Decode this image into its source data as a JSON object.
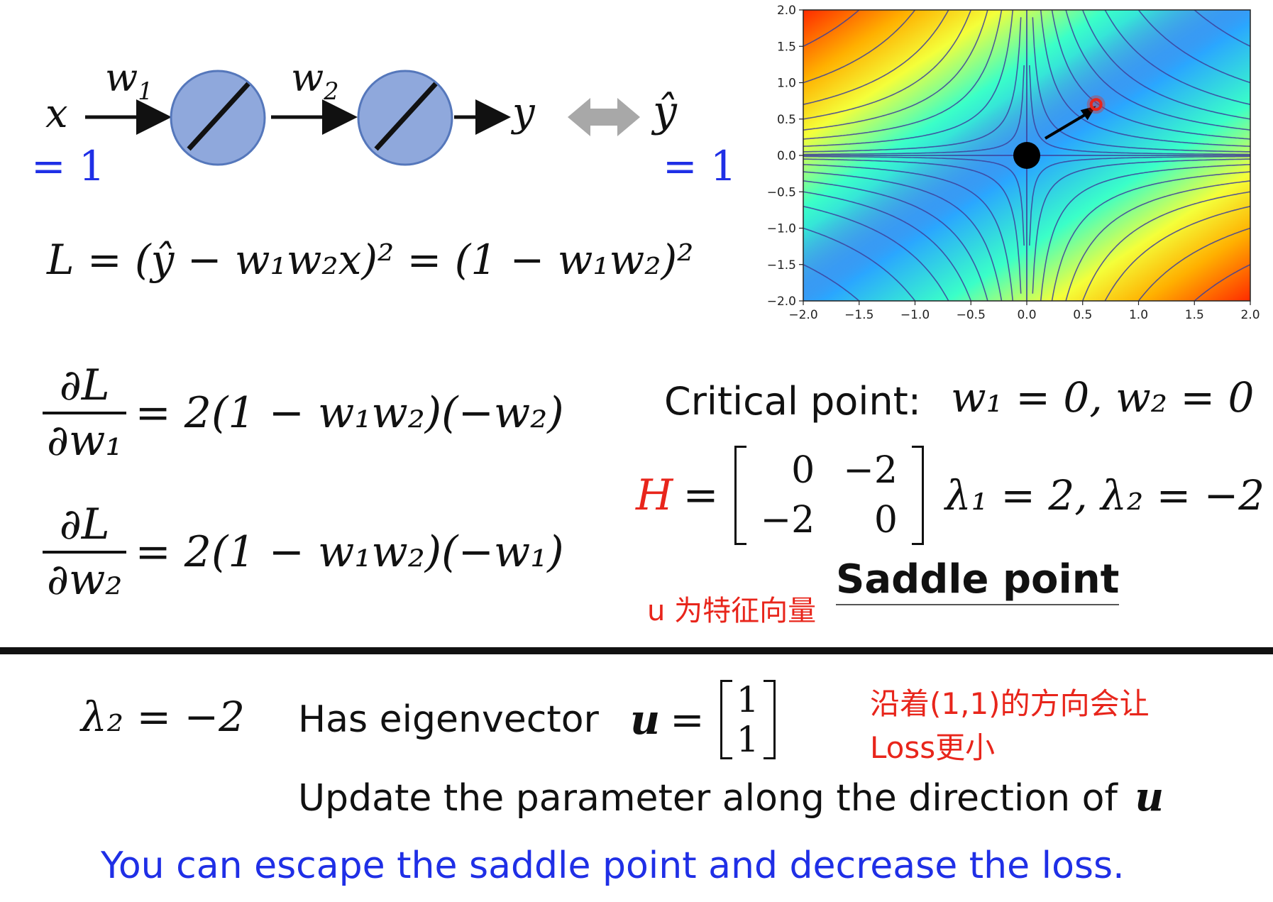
{
  "diagram": {
    "x_label": "x",
    "x_value": "= 1",
    "w1_label": "w",
    "w1_sub": "1",
    "w2_label": "w",
    "w2_sub": "2",
    "y_label": "y",
    "yhat_label": "ŷ",
    "yhat_value": "= 1",
    "colors": {
      "neuron_fill": "#8fa8dc",
      "neuron_stroke": "#5577bb",
      "double_arrow": "#a8a8a8"
    }
  },
  "loss_equation": "L = (ŷ − w₁w₂x)² = (1 − w₁w₂)²",
  "partials": {
    "dl_num": "∂L",
    "dw1_den": "∂w₁",
    "dw1_rhs": "= 2(1 − w₁w₂)(−w₂)",
    "dw2_den": "∂w₂",
    "dw2_rhs": "= 2(1 − w₁w₂)(−w₁)"
  },
  "critical": {
    "label": "Critical point:",
    "value": "w₁ = 0, w₂ = 0"
  },
  "hessian": {
    "symbol": "H",
    "eq": "=",
    "m11": "0",
    "m12": "−2",
    "m21": "−2",
    "m22": "0",
    "eigenvalues": "λ₁ = 2, λ₂ = −2"
  },
  "annotation_u": "u 为特征向量",
  "saddle_label": "Saddle point",
  "bottom": {
    "lambda2": "λ₂ = −2",
    "has_eigenvector": "Has eigenvector",
    "u_symbol": "u",
    "u_eq": "=",
    "u1": "1",
    "u2": "1",
    "note_line1": "沿着(1,1)的方向会让",
    "note_line2": "Loss更小",
    "update_text": "Update the parameter along the direction of",
    "update_u": "u",
    "escape_text": "You can escape the saddle point and decrease the loss."
  },
  "chart_data": {
    "type": "contour",
    "function": "(1 - w1*w2)^2",
    "xlim": [
      -2.0,
      2.0
    ],
    "ylim": [
      -2.0,
      2.0
    ],
    "x_ticks": [
      "−2.0",
      "−1.5",
      "−1.0",
      "−0.5",
      "0.0",
      "0.5",
      "1.0",
      "1.5",
      "2.0"
    ],
    "y_ticks": [
      "2.0",
      "1.5",
      "1.0",
      "0.5",
      "0.0",
      "−0.5",
      "−1.0",
      "−1.5",
      "−2.0"
    ],
    "saddle_point": [
      0.0,
      0.0
    ],
    "red_point": [
      0.62,
      0.7
    ],
    "colors": {
      "background": "#6d6fc9",
      "line": "#3d3f9a",
      "marker_black": "#000000",
      "marker_red": "#e8251b"
    }
  }
}
